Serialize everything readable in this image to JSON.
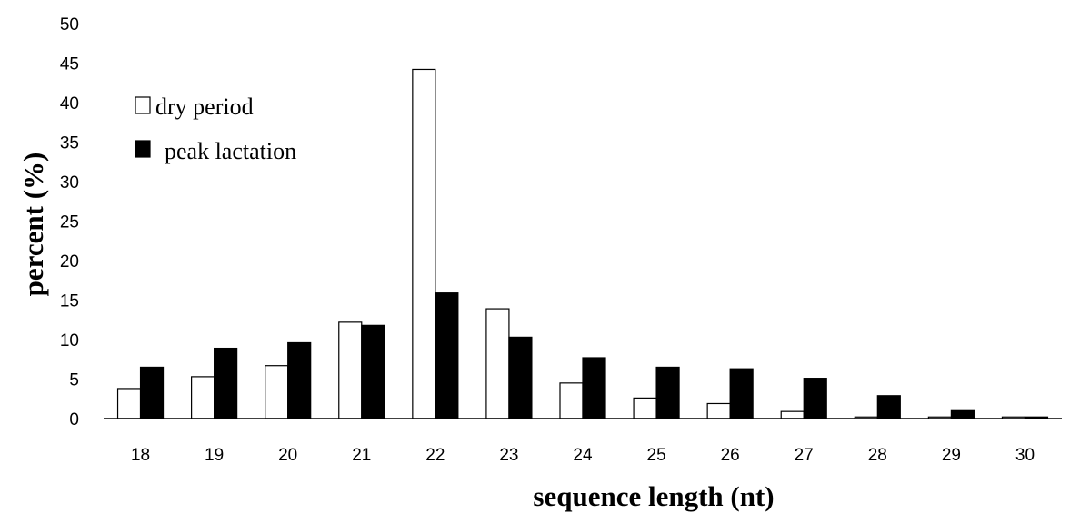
{
  "chart_data": {
    "type": "bar",
    "categories": [
      "18",
      "19",
      "20",
      "21",
      "22",
      "23",
      "24",
      "25",
      "26",
      "27",
      "28",
      "29",
      "30"
    ],
    "series": [
      {
        "name": "dry period",
        "color": "#ffffff",
        "values": [
          3.8,
          5.3,
          6.7,
          12.2,
          44.2,
          13.9,
          4.5,
          2.6,
          1.9,
          0.9,
          0.2,
          0.2,
          0.2
        ]
      },
      {
        "name": "peak lactation",
        "color": "#000000",
        "values": [
          6.5,
          8.9,
          9.6,
          11.8,
          15.9,
          10.3,
          7.7,
          6.5,
          6.3,
          5.1,
          2.9,
          1.0,
          0.2
        ]
      }
    ],
    "xlabel": "sequence length (nt)",
    "ylabel": "percent (%)",
    "ylim": [
      0,
      50
    ],
    "yticks": [
      "0",
      "5",
      "10",
      "15",
      "20",
      "25",
      "30",
      "35",
      "40",
      "45",
      "50"
    ],
    "grid": false,
    "legend_position": "top-left"
  }
}
